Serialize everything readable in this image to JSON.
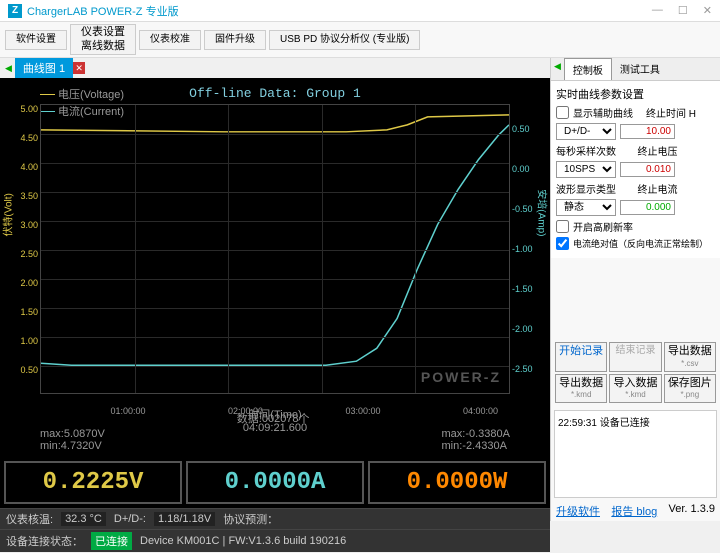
{
  "title": "ChargerLAB POWER-Z 专业版",
  "toolbar": {
    "btn1": "软件设置",
    "btn2a": "仪表设置",
    "btn2b": "离线数据",
    "btn3": "仪表校准",
    "btn4": "固件升级",
    "btn5": "USB PD 协议分析仪 (专业版)"
  },
  "tab": {
    "label": "曲线图 1"
  },
  "chart": {
    "title": "Off-line Data: Group 1",
    "legend": {
      "voltage": "电压(Voltage)",
      "current": "电流(Current)"
    },
    "y_left_label": "伏特(Volt)",
    "y_right_label": "安培(Amp)",
    "x_label": "时间(Time)",
    "watermark": "POWER-Z",
    "y_left_ticks": [
      "5.00",
      "4.50",
      "4.00",
      "3.50",
      "3.00",
      "2.50",
      "2.00",
      "1.50",
      "1.00",
      "0.50"
    ],
    "y_right_ticks": [
      "0.50",
      "0.00",
      "-0.50",
      "-1.00",
      "-1.50",
      "-2.00",
      "-2.50"
    ],
    "x_ticks": [
      "01:00:00",
      "02:00:00",
      "03:00:00",
      "04:00:00"
    ],
    "x_center": "04:09:21.600",
    "colors": {
      "voltage": "#dfc947",
      "current": "#5fd0ce",
      "bg": "#000000",
      "grid": "#2a2a2a"
    },
    "stats": {
      "max_v": "max:5.0870V",
      "min_v": "min:4.7320V",
      "count": "数据:002078个",
      "max_a": "max:-0.3380A",
      "min_a": "min:-2.4330A"
    }
  },
  "readout": {
    "voltage": {
      "value": "0.2225V",
      "color": "#dfc947"
    },
    "current": {
      "value": "0.0000A",
      "color": "#5fd0ce"
    },
    "power": {
      "value": "0.0000W",
      "color": "#ff8800"
    }
  },
  "status": {
    "row1": {
      "label": "仪表核温:",
      "temp": "32.3 °C",
      "dpdm_label": "D+/D-:",
      "dpdm": "1.18/1.18V",
      "proto": "协议预测："
    },
    "row2": {
      "label": "设备连接状态：",
      "conn": "已连接",
      "device": "Device KM001C | FW:V1.3.6 build 190216"
    }
  },
  "right": {
    "tabs": {
      "t1": "控制板",
      "t2": "测试工具"
    },
    "panel_title": "实时曲线参数设置",
    "aux_label": "显示辅助曲线",
    "end_time_label": "终止时间 H",
    "end_time": "10.00",
    "dpdm_sel": "D+/D-",
    "sps_label": "每秒采样次数",
    "sps_sel": "10SPS",
    "end_v_label": "终止电压",
    "end_v": "0.010",
    "wave_label": "波形显示类型",
    "wave_sel": "静态",
    "end_a_label": "终止电流",
    "end_a": "0.000",
    "refresh_label": "开启高刷新率",
    "abs_label": "电流绝对值（反向电流正常绘制）",
    "buttons": {
      "start": "开始记录",
      "end": "结束记录",
      "export": "导出数据",
      "export_sub": "*.csv",
      "exp2": "导出数据",
      "exp2_sub": "*.kmd",
      "imp": "导入数据",
      "imp_sub": "*.kmd",
      "save": "保存图片",
      "save_sub": "*.png"
    },
    "log": "22:59:31 设备已连接",
    "footer": {
      "upgrade": "升级软件",
      "blog": "报告 blog",
      "ver": "Ver. 1.3.9"
    }
  }
}
